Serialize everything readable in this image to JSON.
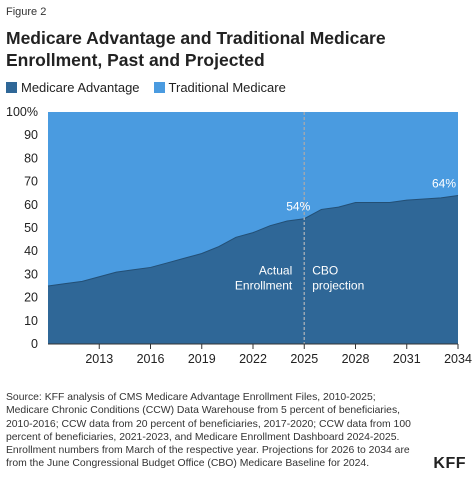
{
  "figure_label": "Figure 2",
  "title": "Medicare Advantage and Traditional Medicare Enrollment, Past and Projected",
  "legend": [
    {
      "label": "Medicare Advantage",
      "color": "#2f6797"
    },
    {
      "label": "Traditional Medicare",
      "color": "#4a9be0"
    }
  ],
  "chart_data": {
    "type": "area",
    "stacked_percent": true,
    "x": [
      2010,
      2011,
      2012,
      2013,
      2014,
      2015,
      2016,
      2017,
      2018,
      2019,
      2020,
      2021,
      2022,
      2023,
      2024,
      2025,
      2026,
      2027,
      2028,
      2029,
      2030,
      2031,
      2032,
      2033,
      2034
    ],
    "series": [
      {
        "name": "Medicare Advantage",
        "color": "#2f6797",
        "values": [
          25,
          26,
          27,
          29,
          31,
          32,
          33,
          35,
          37,
          39,
          42,
          46,
          48,
          51,
          53,
          54,
          58,
          59,
          61,
          61,
          61,
          62,
          62.5,
          63,
          64
        ]
      },
      {
        "name": "Traditional Medicare",
        "color": "#4a9be0",
        "values": [
          75,
          74,
          73,
          71,
          69,
          68,
          67,
          65,
          63,
          61,
          58,
          54,
          52,
          49,
          47,
          46,
          42,
          41,
          39,
          39,
          39,
          38,
          37.5,
          37,
          36
        ]
      }
    ],
    "xticks": [
      2013,
      2016,
      2019,
      2022,
      2025,
      2028,
      2031,
      2034
    ],
    "yticks": [
      "0",
      "10",
      "20",
      "30",
      "40",
      "50",
      "60",
      "70",
      "80",
      "90",
      "100%"
    ],
    "ylim": [
      0,
      100
    ],
    "xlim": [
      2010,
      2034
    ],
    "divider_x": 2025,
    "data_labels": [
      {
        "x": 2025,
        "y": 54,
        "text": "54%"
      },
      {
        "x": 2034,
        "y": 64,
        "text": "64%"
      }
    ],
    "annotations": [
      {
        "text": [
          "Actual",
          "Enrollment"
        ],
        "side": "left-of-divider"
      },
      {
        "text": [
          "CBO",
          "projection"
        ],
        "side": "right-of-divider"
      }
    ]
  },
  "source": "Source: KFF analysis of CMS Medicare Advantage Enrollment Files, 2010-2025; Medicare Chronic Conditions (CCW) Data Warehouse from 5 percent of beneficiaries, 2010-2016; CCW data from 20 percent of beneficiaries, 2017-2020; CCW data from 100 percent of beneficiaries, 2021-2023, and Medicare Enrollment Dashboard 2024-2025. Enrollment numbers from March of the respective year. Projections for 2026 to 2034 are from the June Congressional Budget Office (CBO) Medicare Baseline for 2024.",
  "logo": "KFF"
}
